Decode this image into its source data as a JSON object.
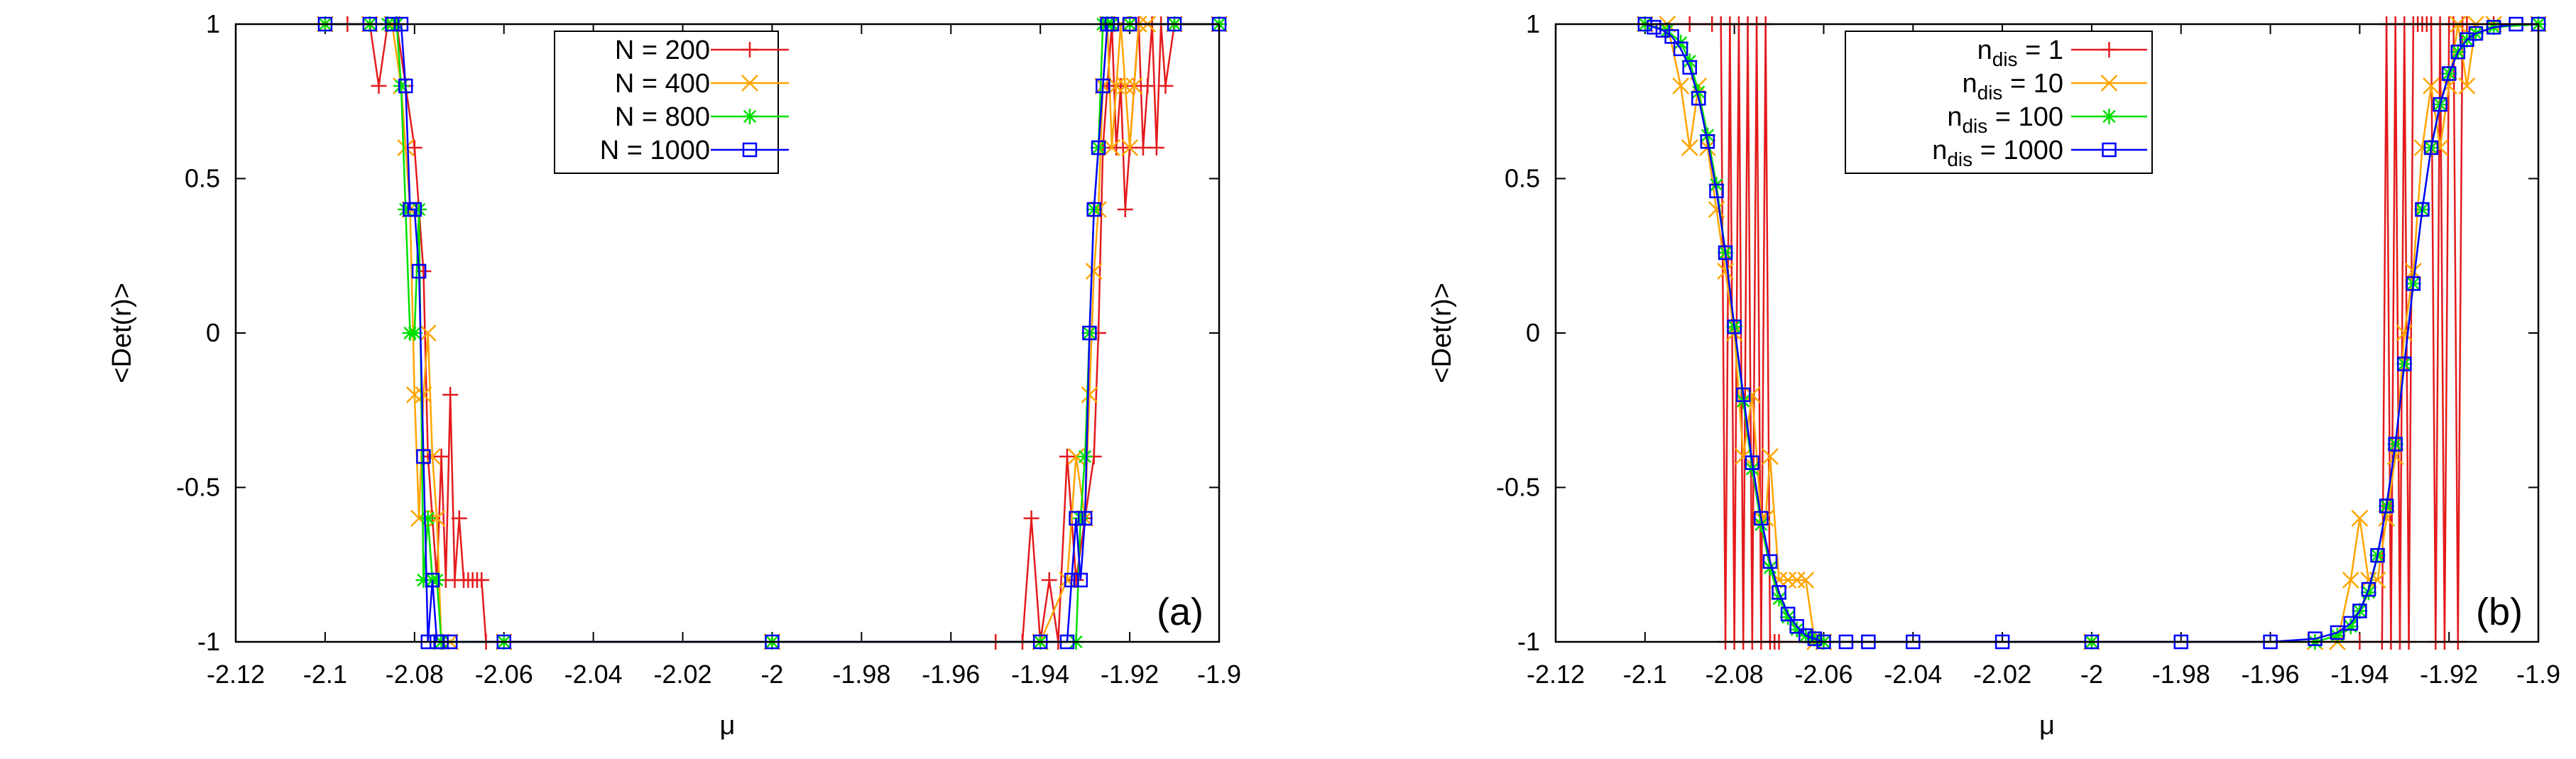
{
  "chart_data": [
    {
      "type": "line",
      "panel_label": "(a)",
      "xlabel": "μ",
      "ylabel": "<Det(r)>",
      "xlim": [
        -2.12,
        -1.9
      ],
      "ylim": [
        -1,
        1
      ],
      "xticks": [
        "-2.12",
        "-2.1",
        "-2.08",
        "-2.06",
        "-2.04",
        "-2.02",
        "-2",
        "-1.98",
        "-1.96",
        "-1.94",
        "-1.92",
        "-1.9"
      ],
      "yticks": [
        "-1",
        "-0.5",
        "0",
        "0.5",
        "1"
      ],
      "legend_position": "top-center",
      "series": [
        {
          "name": "N = 200",
          "color": "#e41a1c",
          "marker": "plus",
          "x": [
            -2.1,
            -2.095,
            -2.09,
            -2.088,
            -2.086,
            -2.084,
            -2.082,
            -2.08,
            -2.078,
            -2.077,
            -2.076,
            -2.075,
            -2.074,
            -2.073,
            -2.072,
            -2.071,
            -2.07,
            -2.069,
            -2.068,
            -2.067,
            -2.066,
            -2.065,
            -2.064,
            -2.06,
            -2.0,
            -1.95,
            -1.944,
            -1.942,
            -1.94,
            -1.938,
            -1.936,
            -1.934,
            -1.932,
            -1.93,
            -1.928,
            -1.927,
            -1.926,
            -1.925,
            -1.924,
            -1.923,
            -1.922,
            -1.921,
            -1.92,
            -1.919,
            -1.918,
            -1.917,
            -1.916,
            -1.915,
            -1.914,
            -1.913,
            -1.912,
            -1.91,
            -1.9
          ],
          "y": [
            1,
            1,
            1,
            0.8,
            1,
            1,
            0.8,
            0.6,
            0.2,
            -0.4,
            -0.6,
            -0.8,
            -0.4,
            -0.8,
            -0.2,
            -0.8,
            -0.6,
            -0.8,
            -0.8,
            -0.8,
            -0.8,
            -0.8,
            -1,
            -1,
            -1,
            -1,
            -1,
            -0.6,
            -1,
            -0.8,
            -1,
            -0.4,
            -0.8,
            -0.6,
            -0.4,
            0,
            0.6,
            0.8,
            1,
            0.6,
            0.8,
            0.4,
            0.6,
            0.8,
            1,
            0.6,
            0.8,
            1,
            0.6,
            1,
            0.8,
            1,
            1
          ]
        },
        {
          "name": "N = 400",
          "color": "#ffa500",
          "marker": "cross",
          "x": [
            -2.1,
            -2.09,
            -2.085,
            -2.083,
            -2.082,
            -2.081,
            -2.08,
            -2.079,
            -2.078,
            -2.077,
            -2.076,
            -2.075,
            -2.074,
            -2.072,
            -2.06,
            -2.0,
            -1.94,
            -1.934,
            -1.932,
            -1.93,
            -1.929,
            -1.928,
            -1.927,
            -1.926,
            -1.925,
            -1.924,
            -1.923,
            -1.922,
            -1.921,
            -1.92,
            -1.919,
            -1.918,
            -1.916,
            -1.91,
            -1.9
          ],
          "y": [
            1,
            1,
            1,
            0.8,
            0.6,
            0.4,
            -0.2,
            -0.6,
            -0.2,
            0,
            -0.4,
            -0.6,
            -1,
            -1,
            -1,
            -1,
            -1,
            -0.8,
            -0.4,
            -0.6,
            -0.2,
            0.2,
            0.4,
            0.8,
            1,
            0.6,
            0.8,
            1,
            0.8,
            0.6,
            0.8,
            1,
            1,
            1,
            1
          ]
        },
        {
          "name": "N = 800",
          "color": "#00e000",
          "marker": "star",
          "x": [
            -2.1,
            -2.09,
            -2.086,
            -2.084,
            -2.083,
            -2.082,
            -2.081,
            -2.08,
            -2.079,
            -2.078,
            -2.077,
            -2.076,
            -2.075,
            -2.074,
            -2.06,
            -2.0,
            -1.94,
            -1.932,
            -1.931,
            -1.93,
            -1.929,
            -1.928,
            -1.927,
            -1.926,
            -1.925,
            -1.924,
            -1.92,
            -1.91,
            -1.9
          ],
          "y": [
            1,
            1,
            1,
            1,
            0.8,
            0.4,
            0,
            0,
            0.4,
            -0.8,
            -0.6,
            -0.8,
            -0.8,
            -1,
            -1,
            -1,
            -1,
            -1,
            -0.6,
            -0.4,
            0,
            0.4,
            0.6,
            1,
            1,
            1,
            1,
            1,
            1
          ]
        },
        {
          "name": "N = 1000",
          "color": "#0000ff",
          "marker": "square",
          "x": [
            -2.1,
            -2.09,
            -2.085,
            -2.083,
            -2.082,
            -2.081,
            -2.08,
            -2.079,
            -2.078,
            -2.077,
            -2.076,
            -2.075,
            -2.074,
            -2.072,
            -2.06,
            -2.0,
            -1.94,
            -1.934,
            -1.933,
            -1.932,
            -1.931,
            -1.93,
            -1.929,
            -1.928,
            -1.927,
            -1.926,
            -1.925,
            -1.924,
            -1.92,
            -1.91,
            -1.9
          ],
          "y": [
            1,
            1,
            1,
            1,
            0.8,
            0.4,
            0.4,
            0.2,
            -0.4,
            -1,
            -0.8,
            -1,
            -1,
            -1,
            -1,
            -1,
            -1,
            -1,
            -0.8,
            -0.6,
            -0.8,
            -0.6,
            0,
            0.4,
            0.6,
            0.8,
            1,
            1,
            1,
            1,
            1
          ]
        }
      ]
    },
    {
      "type": "line",
      "panel_label": "(b)",
      "xlabel": "μ",
      "ylabel": "<Det(r)>",
      "xlim": [
        -2.12,
        -1.9
      ],
      "ylim": [
        -1,
        1
      ],
      "xticks": [
        "-2.12",
        "-2.1",
        "-2.08",
        "-2.06",
        "-2.04",
        "-2.02",
        "-2",
        "-1.98",
        "-1.96",
        "-1.94",
        "-1.92",
        "-1.9"
      ],
      "yticks": [
        "-1",
        "-0.5",
        "0",
        "0.5",
        "1"
      ],
      "legend_position": "top-center",
      "series": [
        {
          "name_main": "n",
          "name_sub": "dis",
          "name_rest": " = 1",
          "color": "#e41a1c",
          "marker": "plus",
          "x": [
            -2.1,
            -2.09,
            -2.085,
            -2.083,
            -2.082,
            -2.081,
            -2.08,
            -2.079,
            -2.078,
            -2.077,
            -2.076,
            -2.075,
            -2.074,
            -2.073,
            -2.072,
            -2.071,
            -2.07,
            -2.06,
            -2.0,
            -1.94,
            -1.935,
            -1.934,
            -1.933,
            -1.932,
            -1.931,
            -1.93,
            -1.929,
            -1.928,
            -1.927,
            -1.926,
            -1.925,
            -1.924,
            -1.923,
            -1.922,
            -1.921,
            -1.92,
            -1.919,
            -1.918,
            -1.917,
            -1.916,
            -1.91,
            -1.9
          ],
          "y": [
            1,
            1,
            1,
            1,
            -1,
            1,
            -1,
            1,
            -1,
            1,
            -1,
            1,
            -1,
            1,
            -1,
            -1,
            -1,
            -1,
            -1,
            -1,
            -1,
            1,
            -1,
            1,
            -1,
            1,
            -1,
            1,
            1,
            1,
            1,
            1,
            -1,
            1,
            -1,
            1,
            1,
            -1,
            1,
            1,
            1,
            1
          ]
        },
        {
          "name_main": "n",
          "name_sub": "dis",
          "name_rest": " = 10",
          "color": "#ffa500",
          "marker": "cross",
          "x": [
            -2.1,
            -2.095,
            -2.092,
            -2.09,
            -2.088,
            -2.086,
            -2.084,
            -2.082,
            -2.08,
            -2.078,
            -2.076,
            -2.074,
            -2.073,
            -2.072,
            -2.07,
            -2.068,
            -2.066,
            -2.064,
            -2.062,
            -2.06,
            -2.0,
            -1.95,
            -1.945,
            -1.942,
            -1.94,
            -1.938,
            -1.936,
            -1.934,
            -1.932,
            -1.93,
            -1.928,
            -1.926,
            -1.924,
            -1.922,
            -1.92,
            -1.918,
            -1.916,
            -1.914,
            -1.91,
            -1.9
          ],
          "y": [
            1,
            1,
            0.8,
            0.6,
            0.8,
            0.6,
            0.4,
            0.2,
            0,
            -0.4,
            -0.2,
            -0.6,
            -0.6,
            -0.4,
            -0.8,
            -0.8,
            -0.8,
            -0.8,
            -1,
            -1,
            -1,
            -1,
            -1,
            -0.8,
            -0.6,
            -0.8,
            -0.8,
            -0.6,
            -0.4,
            0,
            0.2,
            0.6,
            0.8,
            0.6,
            0.8,
            1,
            0.8,
            1,
            1,
            1
          ]
        },
        {
          "name_main": "n",
          "name_sub": "dis",
          "name_rest": " = 100",
          "color": "#00e000",
          "marker": "star",
          "x": [
            -2.1,
            -2.095,
            -2.092,
            -2.09,
            -2.088,
            -2.086,
            -2.084,
            -2.082,
            -2.08,
            -2.078,
            -2.076,
            -2.074,
            -2.072,
            -2.07,
            -2.068,
            -2.066,
            -2.064,
            -2.062,
            -2.06,
            -2.0,
            -1.95,
            -1.945,
            -1.942,
            -1.94,
            -1.938,
            -1.936,
            -1.934,
            -1.932,
            -1.93,
            -1.928,
            -1.926,
            -1.924,
            -1.922,
            -1.92,
            -1.918,
            -1.916,
            -1.914,
            -1.91,
            -1.9
          ],
          "y": [
            1,
            0.98,
            0.94,
            0.88,
            0.78,
            0.64,
            0.48,
            0.26,
            0.02,
            -0.22,
            -0.44,
            -0.62,
            -0.76,
            -0.86,
            -0.92,
            -0.96,
            -0.98,
            -0.99,
            -1,
            -1,
            -1,
            -0.98,
            -0.95,
            -0.9,
            -0.84,
            -0.72,
            -0.56,
            -0.36,
            -0.1,
            0.16,
            0.4,
            0.6,
            0.74,
            0.84,
            0.91,
            0.95,
            0.97,
            0.99,
            1
          ]
        },
        {
          "name_main": "n",
          "name_sub": "dis",
          "name_rest": " = 1000",
          "color": "#0000ff",
          "marker": "square",
          "x": [
            -2.1,
            -2.098,
            -2.096,
            -2.094,
            -2.092,
            -2.09,
            -2.088,
            -2.086,
            -2.084,
            -2.082,
            -2.08,
            -2.078,
            -2.076,
            -2.074,
            -2.072,
            -2.07,
            -2.068,
            -2.066,
            -2.064,
            -2.062,
            -2.06,
            -2.055,
            -2.05,
            -2.04,
            -2.02,
            -2.0,
            -1.98,
            -1.96,
            -1.95,
            -1.945,
            -1.942,
            -1.94,
            -1.938,
            -1.936,
            -1.934,
            -1.932,
            -1.93,
            -1.928,
            -1.926,
            -1.924,
            -1.922,
            -1.92,
            -1.918,
            -1.916,
            -1.914,
            -1.91,
            -1.905,
            -1.9
          ],
          "y": [
            1,
            0.99,
            0.98,
            0.96,
            0.92,
            0.86,
            0.76,
            0.62,
            0.46,
            0.26,
            0.02,
            -0.2,
            -0.42,
            -0.6,
            -0.74,
            -0.84,
            -0.91,
            -0.95,
            -0.98,
            -0.99,
            -1,
            -1,
            -1,
            -1,
            -1,
            -1,
            -1,
            -1,
            -0.99,
            -0.97,
            -0.94,
            -0.9,
            -0.83,
            -0.72,
            -0.56,
            -0.36,
            -0.1,
            0.16,
            0.4,
            0.6,
            0.74,
            0.84,
            0.91,
            0.95,
            0.97,
            0.99,
            1,
            1
          ]
        }
      ]
    }
  ]
}
